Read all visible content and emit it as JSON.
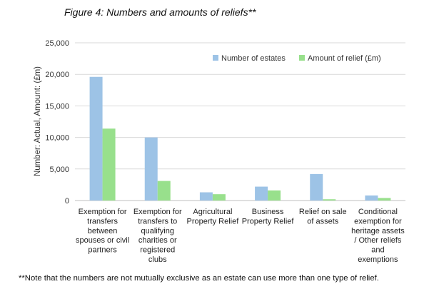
{
  "figure_title": "Figure 4: Numbers and amounts of reliefs**",
  "footnote": "**Note that the numbers are not mutually exclusive as an estate can use more than one type of relief.",
  "colors": {
    "series0": "#9DC3E6",
    "series1": "#98E08C",
    "grid": "#D9D9D9",
    "axis": "#BFBFBF"
  },
  "chart_data": {
    "type": "bar",
    "title": "Figure 4: Numbers and amounts of reliefs**",
    "ylabel": "Number: Actual, Amount: (£m)",
    "xlabel": "",
    "ylim": [
      0,
      25000
    ],
    "yticks": [
      "0",
      "5,000",
      "10,000",
      "15,000",
      "20,000",
      "25,000"
    ],
    "ytick_values": [
      0,
      5000,
      10000,
      15000,
      20000,
      25000
    ],
    "grid": true,
    "legend": "top-right",
    "categories": [
      [
        "Exemption for",
        "transfers",
        "between",
        "spouses or civil",
        "partners"
      ],
      [
        "Exemption for",
        "transfers to",
        "qualifying",
        "charities or",
        "registered",
        "clubs"
      ],
      [
        "Agricultural",
        "Property Relief"
      ],
      [
        "Business",
        "Property Relief"
      ],
      [
        "Relief on sale",
        "of assets"
      ],
      [
        "Conditional",
        "exemption for",
        "heritage assets",
        "/ Other reliefs",
        "and",
        "exemptions"
      ]
    ],
    "series": [
      {
        "name": "Number of estates",
        "values": [
          19600,
          10000,
          1300,
          2200,
          4200,
          800
        ]
      },
      {
        "name": "Amount of relief (£m)",
        "values": [
          11400,
          3100,
          1000,
          1600,
          200,
          400
        ]
      }
    ]
  }
}
